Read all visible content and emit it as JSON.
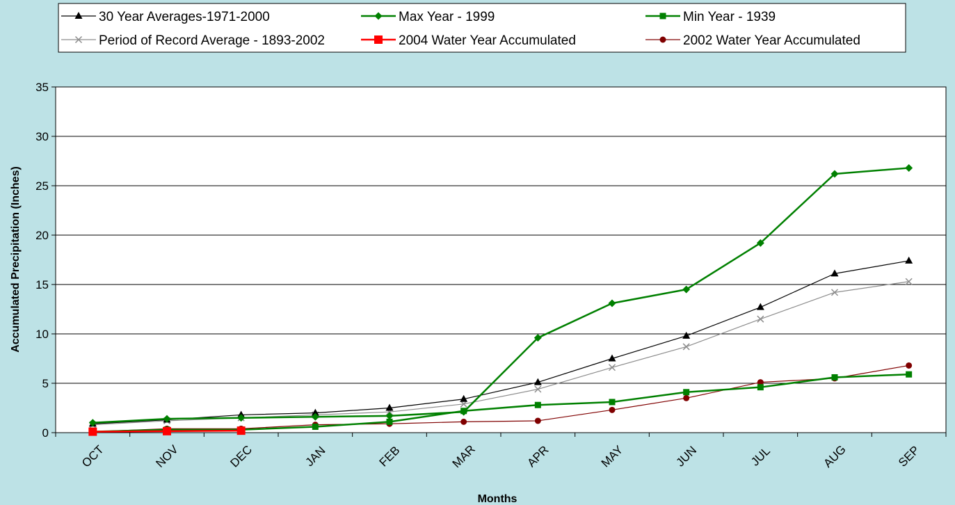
{
  "chart_data": {
    "type": "line",
    "categories": [
      "OCT",
      "NOV",
      "DEC",
      "JAN",
      "FEB",
      "MAR",
      "APR",
      "MAY",
      "JUN",
      "JUL",
      "AUG",
      "SEP"
    ],
    "xlabel": "Months",
    "ylabel": "Accumulated Precipitation (Inches)",
    "ylim": [
      0,
      35
    ],
    "yticks": [
      0,
      5,
      10,
      15,
      20,
      25,
      30,
      35
    ],
    "grid": "horizontal",
    "legend_position": "top",
    "series": [
      {
        "name": "30 Year Averages-1971-2000",
        "color": "#000000",
        "marker": "triangle",
        "width": 1.2,
        "values": [
          0.9,
          1.3,
          1.8,
          2.0,
          2.5,
          3.4,
          5.1,
          7.5,
          9.8,
          12.7,
          16.1,
          17.4
        ]
      },
      {
        "name": "Max Year - 1999",
        "color": "#008000",
        "marker": "diamond",
        "width": 2.5,
        "values": [
          1.0,
          1.4,
          1.5,
          1.6,
          1.7,
          2.1,
          9.6,
          13.1,
          14.5,
          19.2,
          26.2,
          26.8
        ]
      },
      {
        "name": "Min Year - 1939",
        "color": "#008000",
        "marker": "square",
        "width": 2.5,
        "values": [
          0.1,
          0.3,
          0.3,
          0.6,
          1.1,
          2.2,
          2.8,
          3.1,
          4.1,
          4.6,
          5.6,
          5.9
        ]
      },
      {
        "name": "Period of Record Average - 1893-2002",
        "color": "#8c8c8c",
        "marker": "x",
        "width": 1.2,
        "values": [
          0.8,
          1.2,
          1.5,
          1.8,
          2.1,
          2.9,
          4.4,
          6.6,
          8.7,
          11.5,
          14.2,
          15.3
        ]
      },
      {
        "name": "2004 Water Year Accumulated",
        "color": "#ff0000",
        "marker": "bigsquare",
        "width": 2.5,
        "values": [
          0.1,
          0.15,
          0.2,
          null,
          null,
          null,
          null,
          null,
          null,
          null,
          null,
          null
        ]
      },
      {
        "name": "2002 Water Year Accumulated",
        "color": "#800000",
        "marker": "circle",
        "width": 1.2,
        "values": [
          0.1,
          0.4,
          0.4,
          0.8,
          0.9,
          1.1,
          1.2,
          2.3,
          3.5,
          5.1,
          5.5,
          6.8
        ]
      }
    ]
  }
}
